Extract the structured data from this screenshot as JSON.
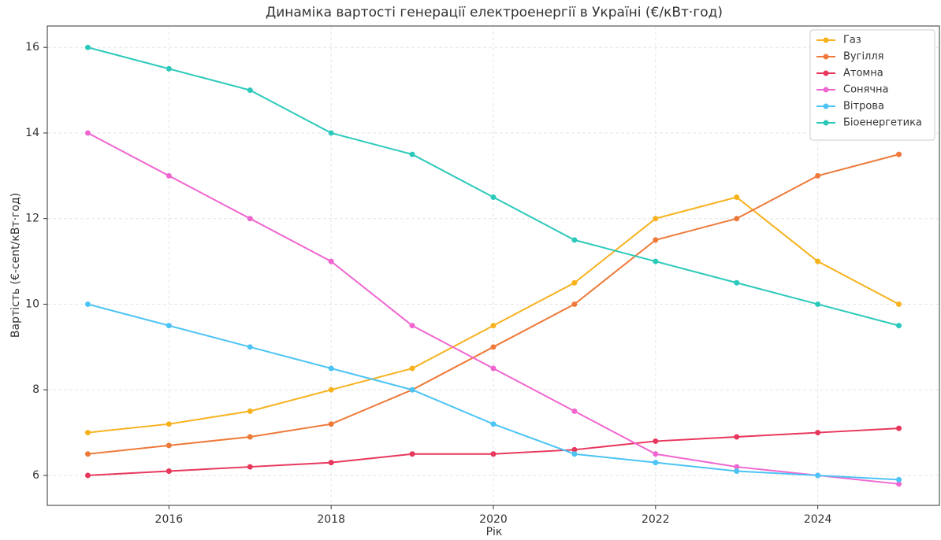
{
  "chart_data": {
    "type": "line",
    "title": "Динаміка вартості генерації електроенергії в Україні (€/кВт·год)",
    "x_label": "Рік",
    "y_label": "Вартість (€-cent/кВт·год)",
    "x": [
      2015,
      2016,
      2017,
      2018,
      2019,
      2020,
      2021,
      2022,
      2023,
      2024,
      2025
    ],
    "series": [
      {
        "name": "Газ",
        "color": "#f7b21e",
        "values": [
          7,
          7.2,
          7.5,
          8,
          8.5,
          9.5,
          10.5,
          12,
          12.5,
          11,
          10
        ]
      },
      {
        "name": "Вугілля",
        "color": "#ee7a3a",
        "values": [
          6.5,
          6.7,
          6.9,
          7.2,
          8,
          9,
          10,
          11.5,
          12,
          13,
          13.5
        ]
      },
      {
        "name": "Атомна",
        "color": "#e8375c",
        "values": [
          6,
          6.1,
          6.2,
          6.3,
          6.5,
          6.5,
          6.6,
          6.8,
          6.9,
          7,
          7.1
        ]
      },
      {
        "name": "Сонячна",
        "color": "#f066d0",
        "values": [
          14,
          13,
          12,
          11,
          9.5,
          8.5,
          7.5,
          6.5,
          6.2,
          6,
          5.8
        ]
      },
      {
        "name": "Вітрова",
        "color": "#4cc4f5",
        "values": [
          10,
          9.5,
          9,
          8.5,
          8,
          7.2,
          6.5,
          6.3,
          6.1,
          6,
          5.9
        ]
      },
      {
        "name": "Біоенергетика",
        "color": "#2cc9bb",
        "values": [
          16,
          15.5,
          15,
          14,
          13.5,
          12.5,
          11.5,
          11,
          10.5,
          10,
          9.5
        ]
      }
    ],
    "xlim": [
      2014.5,
      2025.5
    ],
    "xticks": [
      2016,
      2018,
      2020,
      2022,
      2024
    ],
    "ylim": [
      5.3,
      16.5
    ],
    "yticks": [
      6,
      8,
      10,
      12,
      14,
      16
    ],
    "grid": true,
    "legend": "upper right"
  }
}
